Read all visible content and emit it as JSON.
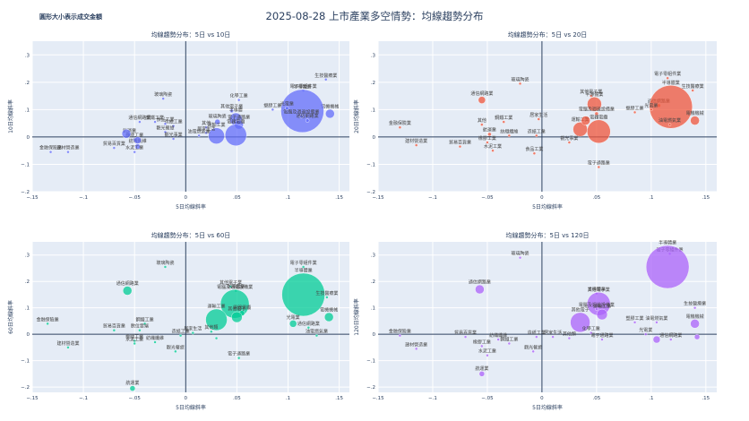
{
  "title": "2025-08-28 上市產業多空情勢：均線趨勢分布",
  "note": "圓形大小表示成交金額",
  "chart_data": [
    {
      "type": "scatter",
      "title": "均線趨勢分布：5日 vs 10日",
      "xlabel": "5日均線斜率",
      "ylabel": "10日均線斜率",
      "xlim": [
        -0.15,
        0.16
      ],
      "ylim": [
        -0.2,
        0.35
      ],
      "xticks": [
        -0.15,
        -0.1,
        -0.05,
        0,
        0.05,
        0.1,
        0.15
      ],
      "yticks": [
        -0.2,
        -0.1,
        0,
        0.1,
        0.2,
        0.3
      ],
      "color": "#636efa",
      "points": [
        {
          "label": "生技醫療業",
          "x": 0.137,
          "y": 0.21,
          "r": 1.5
        },
        {
          "label": "電子零組件業",
          "x": 0.115,
          "y": 0.17,
          "r": 1.5
        },
        {
          "label": "電機機械",
          "x": 0.141,
          "y": 0.085,
          "r": 5
        },
        {
          "label": "半導體業",
          "x": 0.114,
          "y": 0.095,
          "r": 24
        },
        {
          "label": "電腦及週邊設備業",
          "x": 0.113,
          "y": 0.075,
          "r": 2
        },
        {
          "label": "通信網路業",
          "x": 0.119,
          "y": 0.06,
          "r": 2
        },
        {
          "label": "光電業",
          "x": 0.099,
          "y": 0.105,
          "r": 2
        },
        {
          "label": "塑膠工業",
          "x": 0.085,
          "y": 0.1,
          "r": 1.5
        },
        {
          "label": "化學工業",
          "x": 0.052,
          "y": 0.135,
          "r": 1.5
        },
        {
          "label": "其他電子業",
          "x": 0.045,
          "y": 0.095,
          "r": 2
        },
        {
          "label": "半導體",
          "x": 0.049,
          "y": 0.065,
          "r": 7
        },
        {
          "label": "電子通路業",
          "x": 0.052,
          "y": 0.045,
          "r": 5
        },
        {
          "label": "玻璃陶瓷",
          "x": 0.031,
          "y": 0.055,
          "r": 3
        },
        {
          "label": "電器電纜",
          "x": 0.049,
          "y": 0.007,
          "r": 12
        },
        {
          "label": "運輸工業",
          "x": 0.03,
          "y": 0.004,
          "r": 9
        },
        {
          "label": "其他",
          "x": 0.02,
          "y": 0.035,
          "r": 1.5
        },
        {
          "label": "居家生活",
          "x": 0.02,
          "y": 0.015,
          "r": 1.5
        },
        {
          "label": "油電燃氣業",
          "x": 0.013,
          "y": 0.005,
          "r": 1.5
        },
        {
          "label": "造紙工業",
          "x": -0.012,
          "y": 0.04,
          "r": 1.5
        },
        {
          "label": "觀光餐旅",
          "x": -0.02,
          "y": 0.018,
          "r": 1.5
        },
        {
          "label": "食品工業",
          "x": -0.02,
          "y": 0.048,
          "r": 1.5
        },
        {
          "label": "觀光事業",
          "x": -0.012,
          "y": -0.007,
          "r": 1.5
        },
        {
          "label": "玻璃陶瓷",
          "x": -0.022,
          "y": 0.14,
          "r": 1.5
        },
        {
          "label": "通信網路業",
          "x": -0.045,
          "y": 0.055,
          "r": 1.5
        },
        {
          "label": "鋼鐵工業",
          "x": -0.03,
          "y": 0.055,
          "r": 1.5
        },
        {
          "label": "航運業",
          "x": -0.055,
          "y": 0.008,
          "r": 1.5
        },
        {
          "label": "橡膠工業",
          "x": -0.05,
          "y": -0.01,
          "r": 2
        },
        {
          "label": "貿易百貨業",
          "x": -0.07,
          "y": -0.04,
          "r": 1.5
        },
        {
          "label": "金融保險業",
          "x": -0.132,
          "y": -0.055,
          "r": 1.5
        },
        {
          "label": "建材營造業",
          "x": -0.115,
          "y": -0.055,
          "r": 1.5
        },
        {
          "label": "紡織纖維",
          "x": -0.047,
          "y": -0.035,
          "r": 3
        },
        {
          "label": "水泥工業",
          "x": -0.05,
          "y": -0.055,
          "r": 1.5
        },
        {
          "label": "",
          "x": -0.058,
          "y": 0.012,
          "r": 5
        },
        {
          "label": "",
          "x": -0.047,
          "y": -0.012,
          "r": 4
        }
      ]
    },
    {
      "type": "scatter",
      "title": "均線趨勢分布：5日 vs 20日",
      "xlabel": "5日均線斜率",
      "ylabel": "20日均線斜率",
      "xlim": [
        -0.15,
        0.16
      ],
      "ylim": [
        -0.2,
        0.35
      ],
      "xticks": [
        -0.15,
        -0.1,
        -0.05,
        0,
        0.05,
        0.1,
        0.15
      ],
      "yticks": [
        -0.2,
        -0.1,
        0,
        0.1,
        0.2,
        0.3
      ],
      "color": "#ef553b",
      "points": [
        {
          "label": "電子零組件業",
          "x": 0.115,
          "y": 0.215,
          "r": 1.5
        },
        {
          "label": "生技醫療業",
          "x": 0.138,
          "y": 0.17,
          "r": 1.5
        },
        {
          "label": "玻璃陶瓷",
          "x": -0.02,
          "y": 0.195,
          "r": 1.5
        },
        {
          "label": "通信網路業",
          "x": -0.055,
          "y": 0.135,
          "r": 4
        },
        {
          "label": "其他電子業",
          "x": 0.045,
          "y": 0.15,
          "r": 1.5
        },
        {
          "label": "半導體業",
          "x": 0.048,
          "y": 0.12,
          "r": 8
        },
        {
          "label": "電腦及週邊設備業",
          "x": 0.05,
          "y": 0.085,
          "r": 2
        },
        {
          "label": "通信網路業",
          "x": 0.107,
          "y": 0.115,
          "r": 2
        },
        {
          "label": "半導體業",
          "x": 0.118,
          "y": 0.11,
          "r": 24
        },
        {
          "label": "電機機械",
          "x": 0.14,
          "y": 0.06,
          "r": 5
        },
        {
          "label": "塑膠工業",
          "x": 0.085,
          "y": 0.09,
          "r": 1.5
        },
        {
          "label": "光電業",
          "x": 0.1,
          "y": 0.1,
          "r": 1.5
        },
        {
          "label": "油電燃氣業",
          "x": 0.117,
          "y": 0.045,
          "r": 1.5
        },
        {
          "label": "電器電纜",
          "x": 0.052,
          "y": 0.02,
          "r": 13
        },
        {
          "label": "運輸工業",
          "x": 0.035,
          "y": 0.028,
          "r": 8
        },
        {
          "label": "居家生活",
          "x": -0.003,
          "y": 0.065,
          "r": 1.5
        },
        {
          "label": "鋼鐵工業",
          "x": -0.035,
          "y": 0.055,
          "r": 1.5
        },
        {
          "label": "其他",
          "x": -0.055,
          "y": 0.045,
          "r": 1.5
        },
        {
          "label": "航運業",
          "x": -0.048,
          "y": 0.01,
          "r": 2
        },
        {
          "label": "紡織纖維",
          "x": -0.03,
          "y": 0.005,
          "r": 1.5
        },
        {
          "label": "造紙工業",
          "x": -0.005,
          "y": 0.005,
          "r": 1.5
        },
        {
          "label": "觀光事業",
          "x": 0.025,
          "y": -0.02,
          "r": 1.5
        },
        {
          "label": "橡膠工業",
          "x": -0.05,
          "y": -0.02,
          "r": 1.5
        },
        {
          "label": "貿易百貨業",
          "x": -0.075,
          "y": -0.035,
          "r": 1.5
        },
        {
          "label": "金融保險業",
          "x": -0.13,
          "y": 0.035,
          "r": 1.5
        },
        {
          "label": "建材營造業",
          "x": -0.115,
          "y": -0.03,
          "r": 1.5
        },
        {
          "label": "水泥工業",
          "x": -0.045,
          "y": -0.05,
          "r": 1.5
        },
        {
          "label": "食品工業",
          "x": -0.007,
          "y": -0.06,
          "r": 1.5
        },
        {
          "label": "電子通路業",
          "x": 0.052,
          "y": -0.11,
          "r": 1.5
        },
        {
          "label": "",
          "x": 0.04,
          "y": 0.06,
          "r": 5
        }
      ]
    },
    {
      "type": "scatter",
      "title": "均線趨勢分布：5日 vs 60日",
      "xlabel": "5日均線斜率",
      "ylabel": "60日均線斜率",
      "xlim": [
        -0.15,
        0.16
      ],
      "ylim": [
        -0.22,
        0.35
      ],
      "xticks": [
        -0.15,
        -0.1,
        -0.05,
        0,
        0.05,
        0.1,
        0.15
      ],
      "yticks": [
        -0.2,
        -0.1,
        0,
        0.1,
        0.2,
        0.3
      ],
      "color": "#00cc96",
      "points": [
        {
          "label": "電子零組件業",
          "x": 0.115,
          "y": 0.255,
          "r": 1.5
        },
        {
          "label": "玻璃陶瓷",
          "x": -0.02,
          "y": 0.255,
          "r": 1.5
        },
        {
          "label": "通信網路業",
          "x": -0.057,
          "y": 0.165,
          "r": 5
        },
        {
          "label": "其他電子業",
          "x": 0.044,
          "y": 0.18,
          "r": 1.5
        },
        {
          "label": "半導體業",
          "x": 0.049,
          "y": 0.165,
          "r": 1.5
        },
        {
          "label": "半導體業",
          "x": 0.115,
          "y": 0.15,
          "r": 24
        },
        {
          "label": "電機機械",
          "x": 0.14,
          "y": 0.065,
          "r": 5
        },
        {
          "label": "生技醫療業",
          "x": 0.138,
          "y": 0.14,
          "r": 1.5
        },
        {
          "label": "電腦及週邊設備業",
          "x": 0.048,
          "y": 0.115,
          "r": 16
        },
        {
          "label": "電器電纜",
          "x": 0.055,
          "y": 0.08,
          "r": 3
        },
        {
          "label": "光電業",
          "x": 0.105,
          "y": 0.04,
          "r": 4
        },
        {
          "label": "通信網路業",
          "x": 0.12,
          "y": 0.025,
          "r": 1.5
        },
        {
          "label": "油電燃氣業",
          "x": 0.128,
          "y": -0.005,
          "r": 1.5
        },
        {
          "label": "運輸工業",
          "x": 0.03,
          "y": 0.055,
          "r": 12
        },
        {
          "label": "其他電子",
          "x": 0.05,
          "y": 0.065,
          "r": 6
        },
        {
          "label": "其他類",
          "x": 0.025,
          "y": 0.01,
          "r": 1.5
        },
        {
          "label": "居家生活",
          "x": 0.007,
          "y": 0.005,
          "r": 1.5
        },
        {
          "label": "電子通路業",
          "x": 0.052,
          "y": -0.09,
          "r": 1.5
        },
        {
          "label": "鋼鐵工業",
          "x": -0.04,
          "y": 0.04,
          "r": 1.5
        },
        {
          "label": "數位雲端",
          "x": -0.045,
          "y": 0.015,
          "r": 1.5
        },
        {
          "label": "貿易百貨業",
          "x": -0.07,
          "y": 0.015,
          "r": 1.5
        },
        {
          "label": "金融保險業",
          "x": -0.135,
          "y": 0.04,
          "r": 1.5
        },
        {
          "label": "建材營造業",
          "x": -0.115,
          "y": -0.05,
          "r": 1.5
        },
        {
          "label": "橡膠工業",
          "x": -0.05,
          "y": -0.025,
          "r": 1.5
        },
        {
          "label": "水泥工業",
          "x": -0.05,
          "y": -0.035,
          "r": 1.5
        },
        {
          "label": "紡織纖維",
          "x": -0.03,
          "y": -0.03,
          "r": 1.5
        },
        {
          "label": "造紙工業",
          "x": -0.005,
          "y": -0.005,
          "r": 1.5
        },
        {
          "label": "觀光餐旅",
          "x": -0.01,
          "y": -0.065,
          "r": 1.5
        },
        {
          "label": "航運業",
          "x": -0.052,
          "y": -0.205,
          "r": 3
        },
        {
          "label": "",
          "x": 0.03,
          "y": -0.015,
          "r": 1.5
        }
      ]
    },
    {
      "type": "scatter",
      "title": "均線趨勢分布：5日 vs 120日",
      "xlabel": "5日均線斜率",
      "ylabel": "120日均線斜率",
      "xlim": [
        -0.15,
        0.16
      ],
      "ylim": [
        -0.22,
        0.35
      ],
      "xticks": [
        -0.15,
        -0.1,
        -0.05,
        0,
        0.05,
        0.1,
        0.15
      ],
      "yticks": [
        -0.2,
        -0.1,
        0,
        0.1,
        0.2,
        0.3
      ],
      "color": "#ab63fa",
      "points": [
        {
          "label": "電子零組件業",
          "x": 0.117,
          "y": 0.305,
          "r": 1.5
        },
        {
          "label": "玻璃陶瓷",
          "x": -0.02,
          "y": 0.29,
          "r": 1.5
        },
        {
          "label": "半導體業",
          "x": 0.115,
          "y": 0.255,
          "r": 24
        },
        {
          "label": "通信網路業",
          "x": -0.057,
          "y": 0.17,
          "r": 5
        },
        {
          "label": "半導體業",
          "x": 0.05,
          "y": 0.155,
          "r": 1.5
        },
        {
          "label": "其他電子業",
          "x": 0.052,
          "y": 0.115,
          "r": 13
        },
        {
          "label": "電腦及週邊設備業",
          "x": 0.05,
          "y": 0.095,
          "r": 1.5
        },
        {
          "label": "生技醫療業",
          "x": 0.14,
          "y": 0.1,
          "r": 1.5
        },
        {
          "label": "電機機械",
          "x": 0.14,
          "y": 0.04,
          "r": 5
        },
        {
          "label": "塑膠工業",
          "x": 0.085,
          "y": 0.045,
          "r": 1.5
        },
        {
          "label": "油電燃氣業",
          "x": 0.105,
          "y": 0.045,
          "r": 1.5
        },
        {
          "label": "光電業",
          "x": 0.095,
          "y": 0.0,
          "r": 1.5
        },
        {
          "label": "通信網路業",
          "x": 0.118,
          "y": -0.02,
          "r": 1.5
        },
        {
          "label": "其他電子",
          "x": 0.035,
          "y": 0.045,
          "r": 11
        },
        {
          "label": "運輸工業",
          "x": 0.055,
          "y": 0.075,
          "r": 6
        },
        {
          "label": "化學工業",
          "x": 0.045,
          "y": 0.005,
          "r": 1.5
        },
        {
          "label": "其他類",
          "x": 0.025,
          "y": -0.015,
          "r": 1.5
        },
        {
          "label": "居家生活",
          "x": 0.01,
          "y": -0.01,
          "r": 1.5
        },
        {
          "label": "電子通路業",
          "x": 0.055,
          "y": -0.02,
          "r": 1.5
        },
        {
          "label": "造紙工業",
          "x": -0.005,
          "y": -0.01,
          "r": 1.5
        },
        {
          "label": "觀光餐旅",
          "x": -0.008,
          "y": -0.065,
          "r": 1.5
        },
        {
          "label": "鋼鐵工業",
          "x": -0.03,
          "y": -0.035,
          "r": 1.5
        },
        {
          "label": "紡織纖維",
          "x": -0.04,
          "y": -0.02,
          "r": 1.5
        },
        {
          "label": "貿易百貨業",
          "x": -0.07,
          "y": -0.01,
          "r": 1.5
        },
        {
          "label": "金融保險業",
          "x": -0.13,
          "y": -0.005,
          "r": 1.5
        },
        {
          "label": "建材營造業",
          "x": -0.115,
          "y": -0.055,
          "r": 1.5
        },
        {
          "label": "橡膠工業",
          "x": -0.055,
          "y": -0.045,
          "r": 1.5
        },
        {
          "label": "水泥工業",
          "x": -0.05,
          "y": -0.08,
          "r": 1.5
        },
        {
          "label": "航運業",
          "x": -0.055,
          "y": -0.15,
          "r": 3
        },
        {
          "label": "",
          "x": 0.105,
          "y": -0.02,
          "r": 4
        },
        {
          "label": "",
          "x": 0.142,
          "y": -0.01,
          "r": 3
        }
      ]
    }
  ]
}
